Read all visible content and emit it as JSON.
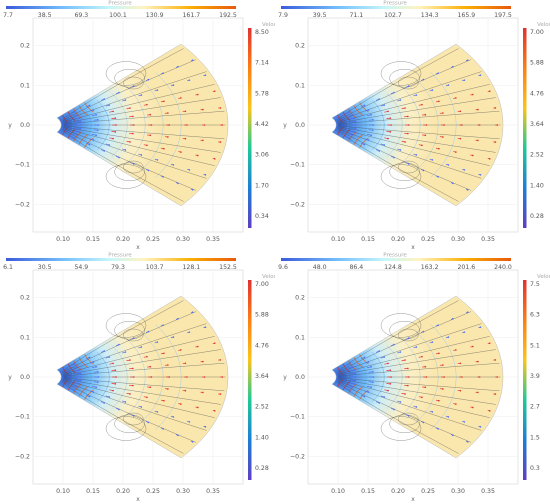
{
  "chart_data": [
    {
      "type": "heatmap",
      "title": "Pressure",
      "colorbar_top": {
        "label": "Pressure",
        "ticks": [
          "7.7",
          "38.5",
          "69.3",
          "100.1",
          "130.9",
          "161.7",
          "192.5"
        ]
      },
      "colorbar_right": {
        "label": "Velocity",
        "ticks": [
          "8.50",
          "7.14",
          "5.78",
          "4.42",
          "3.06",
          "1.70",
          "0.34"
        ]
      },
      "xlabel": "x",
      "ylabel": "y",
      "xticks": [
        "0.10",
        "0.15",
        "0.20",
        "0.25",
        "0.30",
        "0.35"
      ],
      "yticks": [
        "0.2",
        "0.1",
        "0.0",
        "−0.1",
        "−0.2"
      ],
      "xlim": [
        0.05,
        0.4
      ],
      "ylim": [
        -0.27,
        0.27
      ],
      "grid": true,
      "colors": {
        "low": "#2f5fd6",
        "mid": "#cfeef6",
        "high": "#c0392b"
      }
    },
    {
      "type": "heatmap",
      "title": "Pressure",
      "colorbar_top": {
        "label": "Pressure",
        "ticks": [
          "7.9",
          "39.5",
          "71.1",
          "102.7",
          "134.3",
          "165.9",
          "197.5"
        ]
      },
      "colorbar_right": {
        "label": "Velocity",
        "ticks": [
          "7.00",
          "5.88",
          "4.76",
          "3.64",
          "2.52",
          "1.40",
          "0.28"
        ]
      },
      "xlabel": "x",
      "ylabel": "y",
      "xticks": [
        "0.10",
        "0.15",
        "0.20",
        "0.25",
        "0.30",
        "0.35"
      ],
      "yticks": [
        "0.2",
        "0.1",
        "0.0",
        "−0.1",
        "−0.2"
      ],
      "xlim": [
        0.05,
        0.4
      ],
      "ylim": [
        -0.27,
        0.27
      ],
      "grid": true,
      "colors": {
        "low": "#2f5fd6",
        "mid": "#cfeef6",
        "high": "#c0392b"
      }
    },
    {
      "type": "heatmap",
      "title": "Pressure",
      "colorbar_top": {
        "label": "Pressure",
        "ticks": [
          "6.1",
          "30.5",
          "54.9",
          "79.3",
          "103.7",
          "128.1",
          "152.5"
        ]
      },
      "colorbar_right": {
        "label": "Velocity",
        "ticks": [
          "7.00",
          "5.88",
          "4.76",
          "3.64",
          "2.52",
          "1.40",
          "0.28"
        ]
      },
      "xlabel": "x",
      "ylabel": "y",
      "xticks": [
        "0.10",
        "0.15",
        "0.20",
        "0.25",
        "0.30",
        "0.35"
      ],
      "yticks": [
        "0.2",
        "0.1",
        "0.0",
        "−0.1",
        "−0.2"
      ],
      "xlim": [
        0.05,
        0.4
      ],
      "ylim": [
        -0.27,
        0.27
      ],
      "grid": true,
      "colors": {
        "low": "#2f5fd6",
        "mid": "#cfeef6",
        "high": "#c0392b"
      }
    },
    {
      "type": "heatmap",
      "title": "Pressure",
      "colorbar_top": {
        "label": "Pressure",
        "ticks": [
          "9.6",
          "48.0",
          "86.4",
          "124.8",
          "163.2",
          "201.6",
          "240.0"
        ]
      },
      "colorbar_right": {
        "label": "Velocity",
        "ticks": [
          "7.5",
          "6.3",
          "5.1",
          "3.9",
          "2.7",
          "1.5",
          "0.3"
        ]
      },
      "xlabel": "x",
      "ylabel": "y",
      "xticks": [
        "0.10",
        "0.15",
        "0.20",
        "0.25",
        "0.30",
        "0.35"
      ],
      "yticks": [
        "0.2",
        "0.1",
        "0.0",
        "−0.1",
        "−0.2"
      ],
      "xlim": [
        0.05,
        0.4
      ],
      "ylim": [
        -0.27,
        0.27
      ],
      "grid": true,
      "colors": {
        "low": "#2f5fd6",
        "mid": "#cfeef6",
        "high": "#c0392b"
      }
    }
  ]
}
